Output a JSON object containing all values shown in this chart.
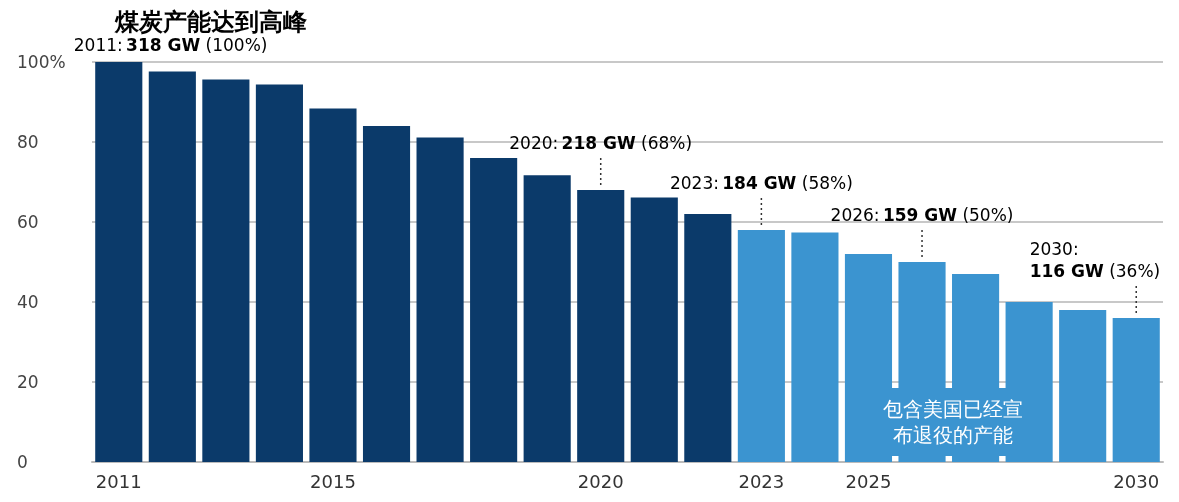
{
  "chart_data": {
    "type": "bar",
    "title": "煤炭产能达到高峰",
    "categories": [
      "2011",
      null,
      null,
      null,
      "2015",
      null,
      null,
      null,
      null,
      "2020",
      null,
      null,
      "2023",
      null,
      "2025",
      null,
      null,
      null,
      null,
      "2030"
    ],
    "values": [
      100,
      97.6,
      95.6,
      94.4,
      88.4,
      84,
      81.1,
      76,
      71.7,
      68,
      66.1,
      62,
      58,
      57.4,
      52,
      50,
      47,
      40,
      38,
      36
    ],
    "colors": [
      "#0b3a6a",
      "#0b3a6a",
      "#0b3a6a",
      "#0b3a6a",
      "#0b3a6a",
      "#0b3a6a",
      "#0b3a6a",
      "#0b3a6a",
      "#0b3a6a",
      "#0b3a6a",
      "#0b3a6a",
      "#0b3a6a",
      "#3b94d0",
      "#3b94d0",
      "#3b94d0",
      "#3b94d0",
      "#3b94d0",
      "#3b94d0",
      "#3b94d0",
      "#3b94d0"
    ],
    "ylim": [
      0,
      100
    ],
    "yticks": [
      0,
      20,
      40,
      60,
      80,
      {
        "value": 100,
        "label": "100%"
      }
    ],
    "grid": "y",
    "annotations": [
      {
        "text": "2011: 318 GW (100%)",
        "x": "2011",
        "y": 100
      },
      {
        "text": "2020: 218 GW (68%)",
        "x": "2020",
        "y": 68
      },
      {
        "text": "2023: 184 GW (58%)",
        "x": "2023",
        "y": 58
      },
      {
        "text": "2026: 159 GW (50%)",
        "y": 50
      },
      {
        "text": "2030: 116 GW (36%)",
        "x": "2030",
        "y": 36
      },
      "包含美国已经宣布退役的产能"
    ]
  }
}
